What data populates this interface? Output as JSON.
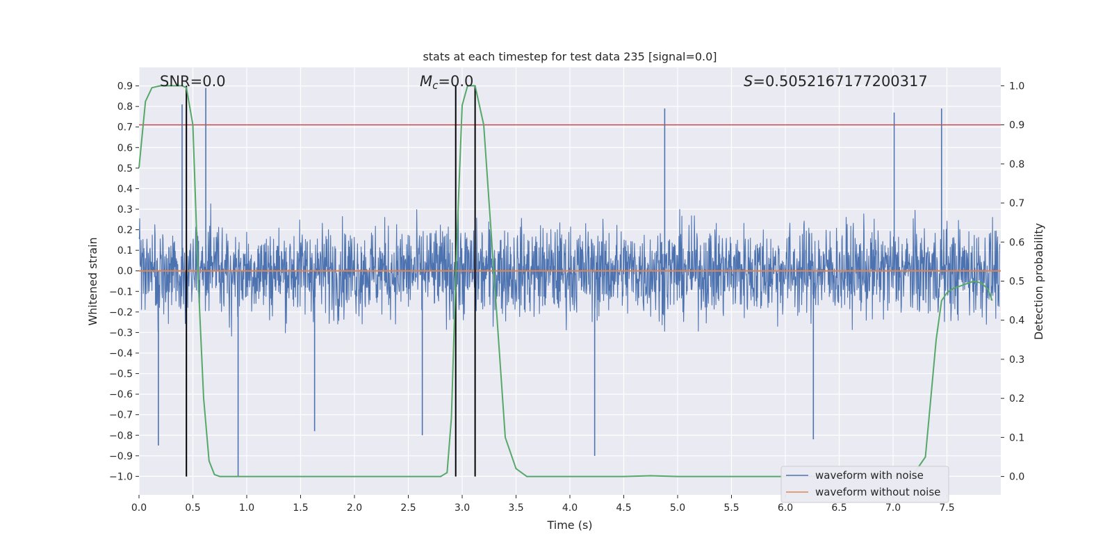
{
  "chart_data": {
    "type": "line",
    "title": "stats at each timestep for test data 235 [signal=0.0]",
    "xlabel": "Time (s)",
    "ylabel": "Whitened strain",
    "y2label": "Detection probability",
    "xlim": [
      0.0,
      8.0
    ],
    "ylim": [
      -1.09,
      0.99
    ],
    "y2lim": [
      -0.047,
      1.047
    ],
    "grid": true,
    "x_ticks": [
      "0.0",
      "0.5",
      "1.0",
      "1.5",
      "2.0",
      "2.5",
      "3.0",
      "3.5",
      "4.0",
      "4.5",
      "5.0",
      "5.5",
      "6.0",
      "6.5",
      "7.0",
      "7.5"
    ],
    "y_ticks": [
      "0.9",
      "0.8",
      "0.7",
      "0.6",
      "0.5",
      "0.4",
      "0.3",
      "0.2",
      "0.1",
      "0.0",
      "−0.1",
      "−0.2",
      "−0.3",
      "−0.4",
      "−0.5",
      "−0.6",
      "−0.7",
      "−0.8",
      "−0.9",
      "−1.0"
    ],
    "y2_ticks": [
      "1.0",
      "0.9",
      "0.8",
      "0.7",
      "0.6",
      "0.5",
      "0.4",
      "0.3",
      "0.2",
      "0.1",
      "0.0"
    ],
    "annotations": {
      "snr": "SNR=0.0",
      "mc_symbol": "M",
      "mc_sub": "c",
      "mc_value": "=0.0",
      "s_symbol": "S",
      "s_value": "=0.5052167177200317"
    },
    "threshold": {
      "y2": 0.9,
      "color": "#c44e52"
    },
    "vertical_lines_x": [
      0.44,
      2.94,
      3.12
    ],
    "series": [
      {
        "name": "waveform with noise",
        "color": "#4c72b0",
        "description": "dense noise strain; envelope roughly -0.5..0.5 with spikes",
        "spikes": [
          {
            "x": 0.62,
            "y": 0.89
          },
          {
            "x": 0.4,
            "y": 0.81
          },
          {
            "x": 0.92,
            "y": -1.0
          },
          {
            "x": 0.18,
            "y": -0.85
          },
          {
            "x": 1.63,
            "y": -0.78
          },
          {
            "x": 2.63,
            "y": -0.8
          },
          {
            "x": 4.23,
            "y": -0.9
          },
          {
            "x": 7.45,
            "y": 0.79
          },
          {
            "x": 4.88,
            "y": 0.79
          },
          {
            "x": 6.26,
            "y": -0.82
          },
          {
            "x": 7.01,
            "y": 0.77
          }
        ]
      },
      {
        "name": "waveform without noise",
        "color": "#dd8452",
        "y": 0.0
      },
      {
        "name": "detection probability",
        "axis": "y2",
        "color": "#55a868",
        "x": [
          0.0,
          0.06,
          0.12,
          0.2,
          0.3,
          0.4,
          0.44,
          0.5,
          0.55,
          0.6,
          0.65,
          0.7,
          0.75,
          0.8,
          1.0,
          1.5,
          2.0,
          2.5,
          2.8,
          2.86,
          2.9,
          2.95,
          3.0,
          3.05,
          3.12,
          3.2,
          3.3,
          3.4,
          3.5,
          3.6,
          4.0,
          4.5,
          4.75,
          5.0,
          5.5,
          6.0,
          6.5,
          7.0,
          7.2,
          7.3,
          7.35,
          7.4,
          7.45,
          7.5,
          7.55,
          7.65,
          7.75,
          7.82,
          7.88,
          7.92
        ],
        "y": [
          0.79,
          0.96,
          0.995,
          1.0,
          1.0,
          1.0,
          0.995,
          0.9,
          0.5,
          0.2,
          0.04,
          0.005,
          0.0,
          0.0,
          0.0,
          0.0,
          0.0,
          0.0,
          0.0,
          0.01,
          0.15,
          0.6,
          0.95,
          1.0,
          1.0,
          0.9,
          0.5,
          0.1,
          0.02,
          0.0,
          0.0,
          0.0,
          0.002,
          0.0,
          0.0,
          0.0,
          0.0,
          0.0,
          0.01,
          0.05,
          0.2,
          0.35,
          0.45,
          0.47,
          0.48,
          0.49,
          0.5,
          0.495,
          0.48,
          0.45
        ]
      }
    ],
    "legend": {
      "position": "lower-right",
      "entries": [
        {
          "label": "waveform with noise",
          "color": "#4c72b0"
        },
        {
          "label": "waveform without noise",
          "color": "#dd8452"
        }
      ]
    }
  }
}
